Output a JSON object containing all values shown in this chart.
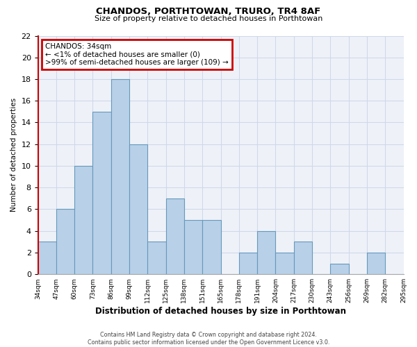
{
  "title": "CHANDOS, PORTHTOWAN, TRURO, TR4 8AF",
  "subtitle": "Size of property relative to detached houses in Porthtowan",
  "xlabel": "Distribution of detached houses by size in Porthtowan",
  "ylabel": "Number of detached properties",
  "footer_line1": "Contains HM Land Registry data © Crown copyright and database right 2024.",
  "footer_line2": "Contains public sector information licensed under the Open Government Licence v3.0.",
  "bar_labels": [
    "34sqm",
    "47sqm",
    "60sqm",
    "73sqm",
    "86sqm",
    "99sqm",
    "112sqm",
    "125sqm",
    "138sqm",
    "151sqm",
    "165sqm",
    "178sqm",
    "191sqm",
    "204sqm",
    "217sqm",
    "230sqm",
    "243sqm",
    "256sqm",
    "269sqm",
    "282sqm",
    "295sqm"
  ],
  "bar_values": [
    3,
    6,
    10,
    15,
    18,
    12,
    3,
    7,
    5,
    5,
    0,
    2,
    4,
    2,
    3,
    0,
    1,
    0,
    2,
    0
  ],
  "bar_color": "#b8d0e8",
  "bar_edge_color": "#6699bb",
  "highlight_spine_color": "#cc0000",
  "ylim": [
    0,
    22
  ],
  "yticks": [
    0,
    2,
    4,
    6,
    8,
    10,
    12,
    14,
    16,
    18,
    20,
    22
  ],
  "annotation_title": "CHANDOS: 34sqm",
  "annotation_line1": "← <1% of detached houses are smaller (0)",
  "annotation_line2": ">99% of semi-detached houses are larger (109) →",
  "annotation_box_color": "#ffffff",
  "annotation_box_edgecolor": "#cc0000",
  "grid_color": "#d0d8e8",
  "background_color": "#ffffff",
  "plot_bg_color": "#eef2f8"
}
